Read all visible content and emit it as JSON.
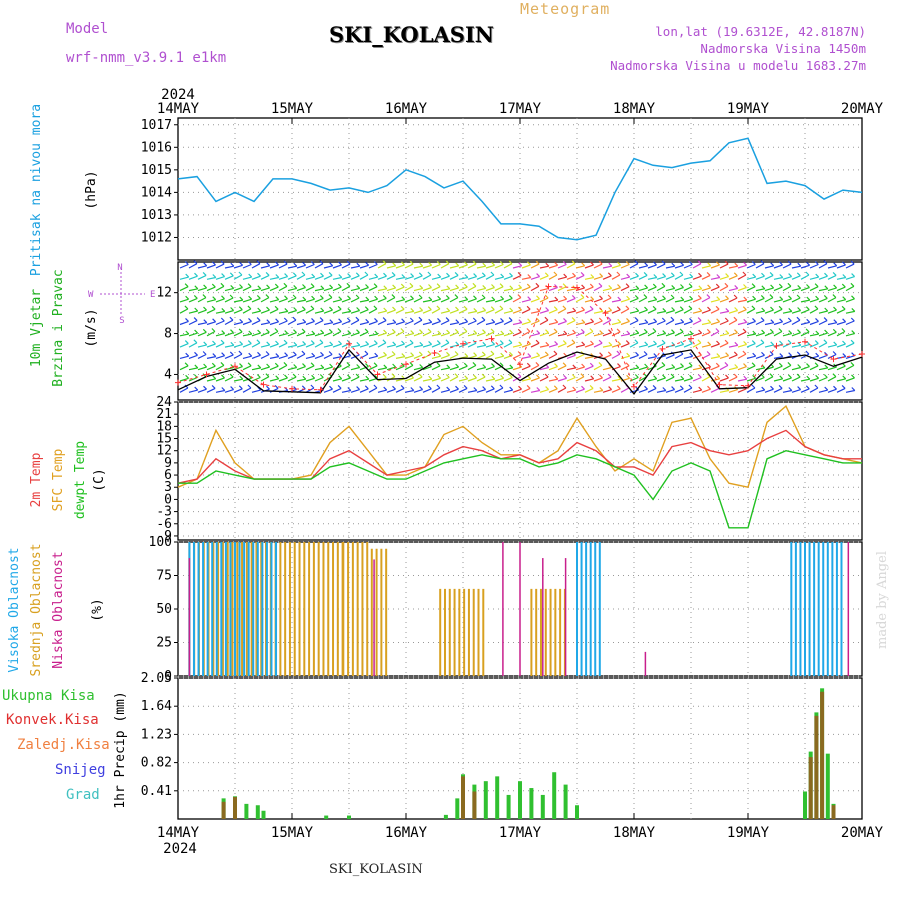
{
  "header": {
    "title": "SKI_KOLASIN",
    "meteogram": "Meteogram",
    "model_label": "Model",
    "model_value": "wrf-nmm_v3.9.1  e1km",
    "location_lines": [
      "lon,lat (19.6312E, 42.8187N)",
      "Nadmorska Visina 1450m",
      "Nadmorska Visina u modelu 1683.27m"
    ],
    "footer_title": "SKI_KOLASIN",
    "credit": "made by Angel",
    "year": "2024"
  },
  "colors": {
    "pressure": "#1aa0e0",
    "wind_speed": "#000000",
    "gust": "#ff3030",
    "temp2m": "#e84040",
    "sfc": "#e0a020",
    "dewpt": "#20c020",
    "cloud_high": "#20a8e8",
    "cloud_mid": "#d8a020",
    "cloud_low": "#c81e8c",
    "precip_total": "#30c030",
    "precip_conv": "#e03030",
    "precip_snow": "#4040e0",
    "precip_frz": "#f08040",
    "precip_grad": "#40c0c0",
    "grid": "#999999"
  },
  "chart_data": [
    {
      "id": "pressure",
      "type": "line",
      "ylabel": [
        "Pritisak na nivou mora",
        "(hPa)"
      ],
      "ylim": [
        1011,
        1017.3
      ],
      "yticks": [
        1012,
        1013,
        1014,
        1015,
        1016,
        1017
      ],
      "x_days": [
        0,
        0.167,
        0.333,
        0.5,
        0.667,
        0.833,
        1,
        1.167,
        1.333,
        1.5,
        1.667,
        1.833,
        2,
        2.167,
        2.333,
        2.5,
        2.667,
        2.833,
        3,
        3.167,
        3.333,
        3.5,
        3.667,
        3.833,
        4,
        4.167,
        4.333,
        4.5,
        4.667,
        4.833,
        5,
        5.167,
        5.333,
        5.5,
        5.667,
        5.833,
        6
      ],
      "values": [
        1014.6,
        1014.7,
        1013.6,
        1014.0,
        1013.6,
        1014.6,
        1014.6,
        1014.4,
        1014.1,
        1014.2,
        1014.0,
        1014.3,
        1015.0,
        1014.7,
        1014.2,
        1014.5,
        1013.6,
        1012.6,
        1012.6,
        1012.5,
        1012.0,
        1011.9,
        1012.1,
        1014.0,
        1015.5,
        1015.2,
        1015.1,
        1015.3,
        1015.4,
        1016.2,
        1016.4,
        1014.4,
        1014.5,
        1014.3,
        1013.7,
        1014.1,
        1014.0
      ]
    },
    {
      "id": "wind",
      "type": "line",
      "ylabel": [
        "10m Vjetar",
        "Brzina i Pravac",
        "(m/s)"
      ],
      "direction_key": [
        "N",
        "W",
        "E",
        "S"
      ],
      "ylim": [
        1.5,
        15
      ],
      "yticks": [
        4,
        8,
        12
      ],
      "x_days": [
        0,
        0.25,
        0.5,
        0.75,
        1,
        1.25,
        1.5,
        1.75,
        2,
        2.25,
        2.5,
        2.75,
        3,
        3.25,
        3.5,
        3.75,
        4,
        4.25,
        4.5,
        4.75,
        5,
        5.25,
        5.5,
        5.75,
        6
      ],
      "speed": [
        2.5,
        3.8,
        4.5,
        2.4,
        2.3,
        2.2,
        6.4,
        3.5,
        3.6,
        5.2,
        5.6,
        5.5,
        3.4,
        5.1,
        6.2,
        5.5,
        2.1,
        5.9,
        6.4,
        2.6,
        2.7,
        5.5,
        5.9,
        4.8,
        5.7
      ],
      "gust": [
        3.2,
        4.0,
        4.8,
        3.0,
        2.6,
        2.5,
        7.0,
        4.0,
        5.0,
        6.1,
        7.0,
        7.5,
        5.0,
        12.6,
        12.5,
        10.0,
        2.8,
        6.5,
        7.5,
        3.0,
        2.9,
        6.8,
        7.2,
        5.5,
        6.0
      ]
    },
    {
      "id": "temperature",
      "type": "line",
      "ylabel": [
        "2m Temp",
        "SFC Temp",
        "dewpt Temp",
        "(C)"
      ],
      "ylim": [
        -10,
        24
      ],
      "yticks": [
        24,
        21,
        18,
        15,
        12,
        9,
        6,
        3,
        0,
        -3,
        -6,
        -9
      ],
      "x_days": [
        0,
        0.167,
        0.333,
        0.5,
        0.667,
        0.833,
        1,
        1.167,
        1.333,
        1.5,
        1.667,
        1.833,
        2,
        2.167,
        2.333,
        2.5,
        2.667,
        2.833,
        3,
        3.167,
        3.333,
        3.5,
        3.667,
        3.833,
        4,
        4.167,
        4.333,
        4.5,
        4.667,
        4.833,
        5,
        5.167,
        5.333,
        5.5,
        5.667,
        5.833,
        6
      ],
      "temp2m": [
        4,
        5,
        10,
        7,
        5,
        5,
        5,
        5,
        10,
        12,
        9,
        6,
        7,
        8,
        11,
        13,
        12,
        10,
        11,
        9,
        10,
        14,
        12,
        8,
        8,
        6,
        13,
        14,
        12,
        11,
        12,
        15,
        17,
        13,
        11,
        10,
        10
      ],
      "sfc": [
        3,
        5,
        17,
        9,
        5,
        5,
        5,
        6,
        14,
        18,
        12,
        6,
        6,
        8,
        16,
        18,
        14,
        11,
        11,
        9,
        12,
        20,
        13,
        7,
        10,
        7,
        19,
        20,
        10,
        4,
        3,
        19,
        23,
        13,
        11,
        10,
        9
      ],
      "dewpt": [
        4,
        4,
        7,
        6,
        5,
        5,
        5,
        5,
        8,
        9,
        7,
        5,
        5,
        7,
        9,
        10,
        11,
        10,
        10,
        8,
        9,
        11,
        10,
        8,
        6,
        0,
        7,
        9,
        7,
        -7,
        -7,
        10,
        12,
        11,
        10,
        9,
        9
      ]
    },
    {
      "id": "clouds",
      "type": "bar",
      "ylabel": [
        "Visoka Oblacnost",
        "Srednja Oblacnost",
        "Niska Oblacnost",
        "(%)"
      ],
      "ylim": [
        0,
        100
      ],
      "yticks": [
        0,
        25,
        50,
        75,
        100
      ],
      "high": [
        [
          0.1,
          0.9,
          100
        ],
        [
          3.5,
          3.72,
          100
        ],
        [
          5.38,
          5.85,
          100
        ]
      ],
      "mid": [
        [
          0.1,
          1.45,
          100
        ],
        [
          1.45,
          1.7,
          100
        ],
        [
          1.7,
          1.85,
          95
        ],
        [
          2.3,
          2.7,
          65
        ],
        [
          3.1,
          3.4,
          65
        ]
      ],
      "low": [
        [
          0.1,
          0.12,
          88
        ],
        [
          1.72,
          1.74,
          87
        ],
        [
          2.85,
          2.87,
          100
        ],
        [
          3.0,
          3.02,
          100
        ],
        [
          3.2,
          3.22,
          88
        ],
        [
          3.4,
          3.42,
          88
        ],
        [
          4.1,
          4.12,
          18
        ],
        [
          5.88,
          5.9,
          100
        ]
      ]
    },
    {
      "id": "precip",
      "type": "bar",
      "ylabel": [
        "Ukupna Kisa",
        "Konvek.Kisa",
        "Zaledj.Kisa",
        "Snijeg",
        "Grad",
        "1hr Precip (mm)"
      ],
      "ylim": [
        0,
        2.05
      ],
      "yticks": [
        0.41,
        0.82,
        1.23,
        1.64,
        2.05
      ],
      "total": [
        [
          0.4,
          0.3
        ],
        [
          0.5,
          0.33
        ],
        [
          0.6,
          0.22
        ],
        [
          0.7,
          0.2
        ],
        [
          0.75,
          0.12
        ],
        [
          1.3,
          0.05
        ],
        [
          1.5,
          0.05
        ],
        [
          2.35,
          0.06
        ],
        [
          2.45,
          0.3
        ],
        [
          2.5,
          0.65
        ],
        [
          2.6,
          0.5
        ],
        [
          2.7,
          0.55
        ],
        [
          2.8,
          0.62
        ],
        [
          2.9,
          0.35
        ],
        [
          3.0,
          0.55
        ],
        [
          3.1,
          0.45
        ],
        [
          3.2,
          0.35
        ],
        [
          3.3,
          0.68
        ],
        [
          3.4,
          0.5
        ],
        [
          3.5,
          0.2
        ],
        [
          5.5,
          0.4
        ],
        [
          5.55,
          0.98
        ],
        [
          5.6,
          1.55
        ],
        [
          5.65,
          1.9
        ],
        [
          5.7,
          0.95
        ],
        [
          5.75,
          0.22
        ]
      ],
      "conv": [
        [
          0.4,
          0.25
        ],
        [
          0.5,
          0.32
        ],
        [
          2.5,
          0.62
        ],
        [
          2.6,
          0.4
        ],
        [
          5.55,
          0.9
        ],
        [
          5.6,
          1.5
        ],
        [
          5.65,
          1.85
        ],
        [
          5.75,
          0.2
        ]
      ]
    }
  ],
  "x_axis": {
    "ticks": [
      "14MAY",
      "15MAY",
      "16MAY",
      "17MAY",
      "18MAY",
      "19MAY",
      "20MAY"
    ],
    "days": 6
  }
}
